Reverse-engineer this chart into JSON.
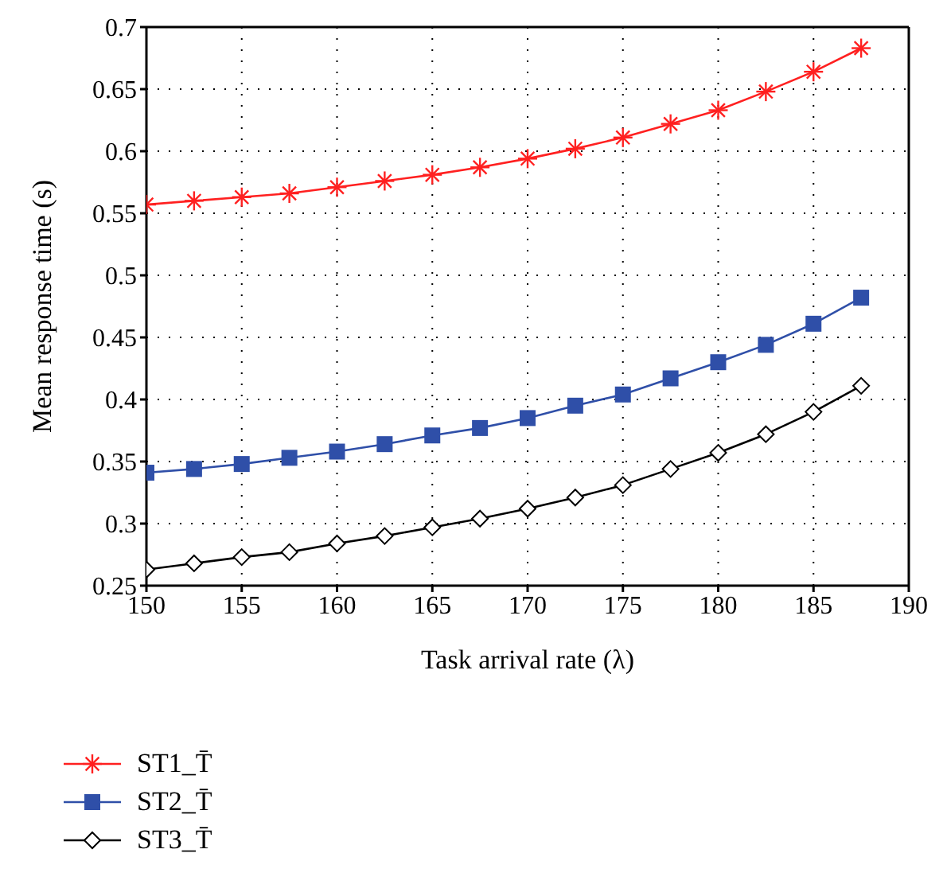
{
  "chart_data": {
    "type": "line",
    "xlabel": "Task arrival rate (λ)",
    "ylabel": "Mean response time (s)",
    "x": [
      150,
      152.5,
      155,
      157.5,
      160,
      162.5,
      165,
      167.5,
      170,
      172.5,
      175,
      177.5,
      180,
      182.5,
      185,
      187.5
    ],
    "series": [
      {
        "name": "ST1_T̄",
        "color": "#ff2020",
        "marker": "cross",
        "values": [
          0.557,
          0.56,
          0.563,
          0.566,
          0.571,
          0.576,
          0.581,
          0.587,
          0.594,
          0.602,
          0.611,
          0.622,
          0.633,
          0.648,
          0.664,
          0.683
        ]
      },
      {
        "name": "ST2_T̄",
        "color": "#2f4fa8",
        "marker": "square",
        "values": [
          0.341,
          0.344,
          0.348,
          0.353,
          0.358,
          0.364,
          0.371,
          0.377,
          0.385,
          0.395,
          0.404,
          0.417,
          0.43,
          0.444,
          0.461,
          0.482
        ]
      },
      {
        "name": "ST3_T̄",
        "color": "#000000",
        "marker": "diamond",
        "values": [
          0.263,
          0.268,
          0.273,
          0.277,
          0.284,
          0.29,
          0.297,
          0.304,
          0.312,
          0.321,
          0.331,
          0.344,
          0.357,
          0.372,
          0.39,
          0.411
        ]
      }
    ],
    "xlim": [
      150,
      190
    ],
    "xticks": [
      150,
      155,
      160,
      165,
      170,
      175,
      180,
      185,
      190
    ],
    "ylim": [
      0.25,
      0.7
    ],
    "yticks": [
      0.25,
      0.3,
      0.35,
      0.4,
      0.45,
      0.5,
      0.55,
      0.6,
      0.65,
      0.7
    ],
    "grid": true,
    "legend": "bottom left",
    "line_style": "solid"
  }
}
